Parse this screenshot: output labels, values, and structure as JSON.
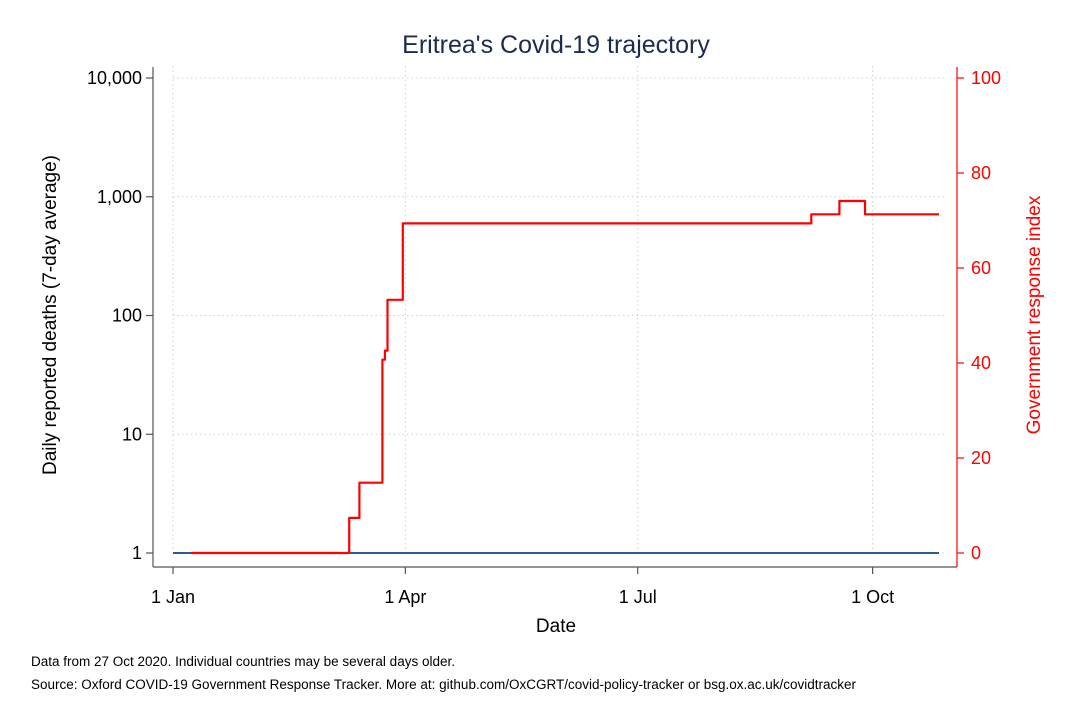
{
  "chart_data": {
    "type": "line",
    "title": "Eritrea's Covid-19 trajectory",
    "xlabel": "Date",
    "ylabel_left": "Daily reported deaths (7-day average)",
    "ylabel_right": "Government response index",
    "x_ticks": [
      "1 Jan",
      "1 Apr",
      "1 Jul",
      "1 Oct"
    ],
    "x_tick_days": [
      0,
      91,
      182,
      274
    ],
    "x_range_days": [
      0,
      300
    ],
    "y_left_scale": "log",
    "y_left_ticks": [
      "1",
      "10",
      "100",
      "1,000",
      "10,000"
    ],
    "y_left_tick_values": [
      1,
      10,
      100,
      1000,
      10000
    ],
    "y_right_ticks": [
      "0",
      "20",
      "40",
      "60",
      "80",
      "100"
    ],
    "y_right_tick_values": [
      0,
      20,
      40,
      60,
      80,
      100
    ],
    "y_right_range": [
      0,
      100
    ],
    "grid": true,
    "series": [
      {
        "axis": "left",
        "color": "#2f5d8a",
        "x_days": [
          0,
          300
        ],
        "y": [
          1,
          1
        ]
      },
      {
        "axis": "right",
        "color": "#ff0000",
        "x_days": [
          7,
          69,
          69,
          73,
          73,
          75,
          75,
          82,
          82,
          83,
          83,
          84,
          84,
          86,
          86,
          90,
          90,
          91,
          91,
          250,
          250,
          261,
          261,
          271,
          271,
          300
        ],
        "y": [
          0,
          0,
          7.4,
          7.4,
          14.8,
          14.8,
          14.8,
          14.8,
          40.7,
          40.7,
          42.6,
          42.6,
          53.3,
          53.3,
          53.3,
          53.3,
          69.4,
          69.4,
          69.4,
          69.4,
          71.3,
          71.3,
          74.1,
          74.1,
          71.3,
          71.3
        ]
      }
    ]
  },
  "footnotes": {
    "line1": "Data from 27 Oct 2020. Individual countries may be several days older.",
    "line2": "Source: Oxford COVID-19 Government Response Tracker. More at: github.com/OxCGRT/covid-policy-tracker or bsg.ox.ac.uk/covidtracker"
  }
}
